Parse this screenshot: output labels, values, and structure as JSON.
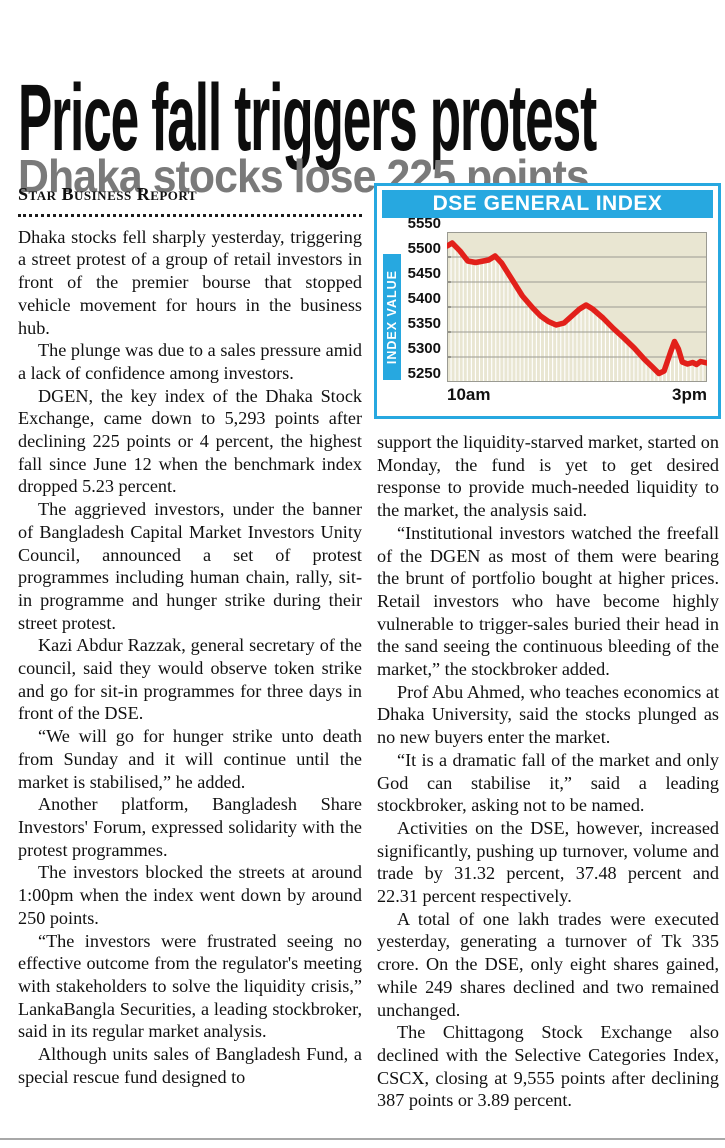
{
  "article": {
    "headline": "Price fall triggers protest",
    "subhead": "Dhaka stocks lose 225 points",
    "byline": "Star Business Report",
    "left_column": [
      "Dhaka stocks fell sharply yesterday, triggering a street protest of a group of retail investors in front of the premier bourse that stopped vehicle movement for hours in the business hub.",
      "The plunge was due to a sales pressure amid a lack of confidence among investors.",
      "DGEN, the key index of the Dhaka Stock Exchange, came down to 5,293 points after declining 225 points or 4 percent, the highest fall since June 12 when the benchmark index dropped 5.23 percent.",
      "The aggrieved investors, under the banner of Bangladesh Capital Market Investors Unity Council, announced a set of protest programmes including human chain, rally, sit-in programme and hunger strike during their street protest.",
      "Kazi Abdur Razzak, general secretary of the council, said they would observe token strike and go for sit-in programmes for three days in front of the DSE.",
      "“We will go for hunger strike unto death from Sunday and it will continue until the market is stabilised,” he added.",
      "Another platform, Bangladesh Share Investors' Forum, expressed solidarity with the protest programmes.",
      "The investors blocked the streets at around 1:00pm when the index went down by around 250 points.",
      "“The investors were frustrated seeing no effective outcome from the regulator's meeting with stakeholders to solve the liquidity crisis,” LankaBangla Securities, a leading stockbroker, said in its regular market analysis.",
      "Although units sales of Bangladesh Fund, a special rescue fund designed to"
    ],
    "right_column": [
      "support the liquidity-starved market, started on Monday, the fund is yet to get desired response to provide much-needed liquidity to the market, the analysis said.",
      "“Institutional investors watched the freefall of the DGEN as most of them were bearing the brunt of portfolio bought at higher prices. Retail investors who have become highly vulnerable to trigger-sales buried their head in the sand seeing the continuous bleeding of the market,” the stockbroker added.",
      "Prof Abu Ahmed, who teaches economics at Dhaka University, said the stocks plunged as no new buyers enter the market.",
      "“It is a dramatic fall of the market and only God can stabilise it,” said a leading stockbroker, asking not to be named.",
      "Activities on the DSE, however, increased significantly, pushing up turnover, volume and trade by 31.32 percent, 37.48 percent and 22.31 percent respectively.",
      "A total of one lakh trades were executed yesterday, generating a turnover of Tk 335 crore. On the DSE, only eight shares gained, while 249 shares declined and two remained unchanged.",
      "The Chittagong Stock Exchange also declined with the Selective Categories Index, CSCX, closing at 9,555 points after declining 387 points or 3.89 percent."
    ]
  },
  "colors": {
    "accent_blue": "#27a8e0",
    "headline_black": "#0d0d0d",
    "subhead_gray": "#7a7a7a",
    "line_red": "#e2201a",
    "plot_beige": "#e9e6d2",
    "grid_gray": "#9a9a92"
  },
  "chart_data": {
    "type": "line",
    "title": "DSE GENERAL INDEX",
    "ylabel": "INDEX VALUE",
    "xlabel": "",
    "x_tick_labels": [
      "10am",
      "3pm"
    ],
    "y_ticks": [
      5550,
      5500,
      5450,
      5400,
      5350,
      5300,
      5250
    ],
    "ylim": [
      5250,
      5550
    ],
    "xlim_labels": [
      "10am",
      "3pm"
    ],
    "grid": "horizontal-gray, vertical-white-droplines-below-curve",
    "legend": "none",
    "plot_bg": "#e9e6d2",
    "grid_color": "#9a9a92",
    "stripe_color": "#ffffff",
    "stripe_count": 64,
    "series": [
      {
        "name": "DGEN index",
        "color": "#e2201a",
        "points": [
          [
            0.0,
            5522
          ],
          [
            0.02,
            5528
          ],
          [
            0.05,
            5512
          ],
          [
            0.08,
            5492
          ],
          [
            0.11,
            5489
          ],
          [
            0.14,
            5492
          ],
          [
            0.16,
            5494
          ],
          [
            0.185,
            5502
          ],
          [
            0.21,
            5488
          ],
          [
            0.25,
            5455
          ],
          [
            0.29,
            5422
          ],
          [
            0.33,
            5398
          ],
          [
            0.36,
            5382
          ],
          [
            0.39,
            5371
          ],
          [
            0.42,
            5364
          ],
          [
            0.45,
            5368
          ],
          [
            0.48,
            5382
          ],
          [
            0.51,
            5396
          ],
          [
            0.535,
            5404
          ],
          [
            0.56,
            5396
          ],
          [
            0.6,
            5378
          ],
          [
            0.64,
            5357
          ],
          [
            0.68,
            5338
          ],
          [
            0.72,
            5318
          ],
          [
            0.76,
            5295
          ],
          [
            0.79,
            5280
          ],
          [
            0.815,
            5267
          ],
          [
            0.835,
            5272
          ],
          [
            0.86,
            5310
          ],
          [
            0.875,
            5331
          ],
          [
            0.89,
            5316
          ],
          [
            0.905,
            5290
          ],
          [
            0.925,
            5286
          ],
          [
            0.945,
            5289
          ],
          [
            0.96,
            5285
          ],
          [
            0.975,
            5291
          ],
          [
            1.0,
            5288
          ]
        ]
      }
    ]
  }
}
